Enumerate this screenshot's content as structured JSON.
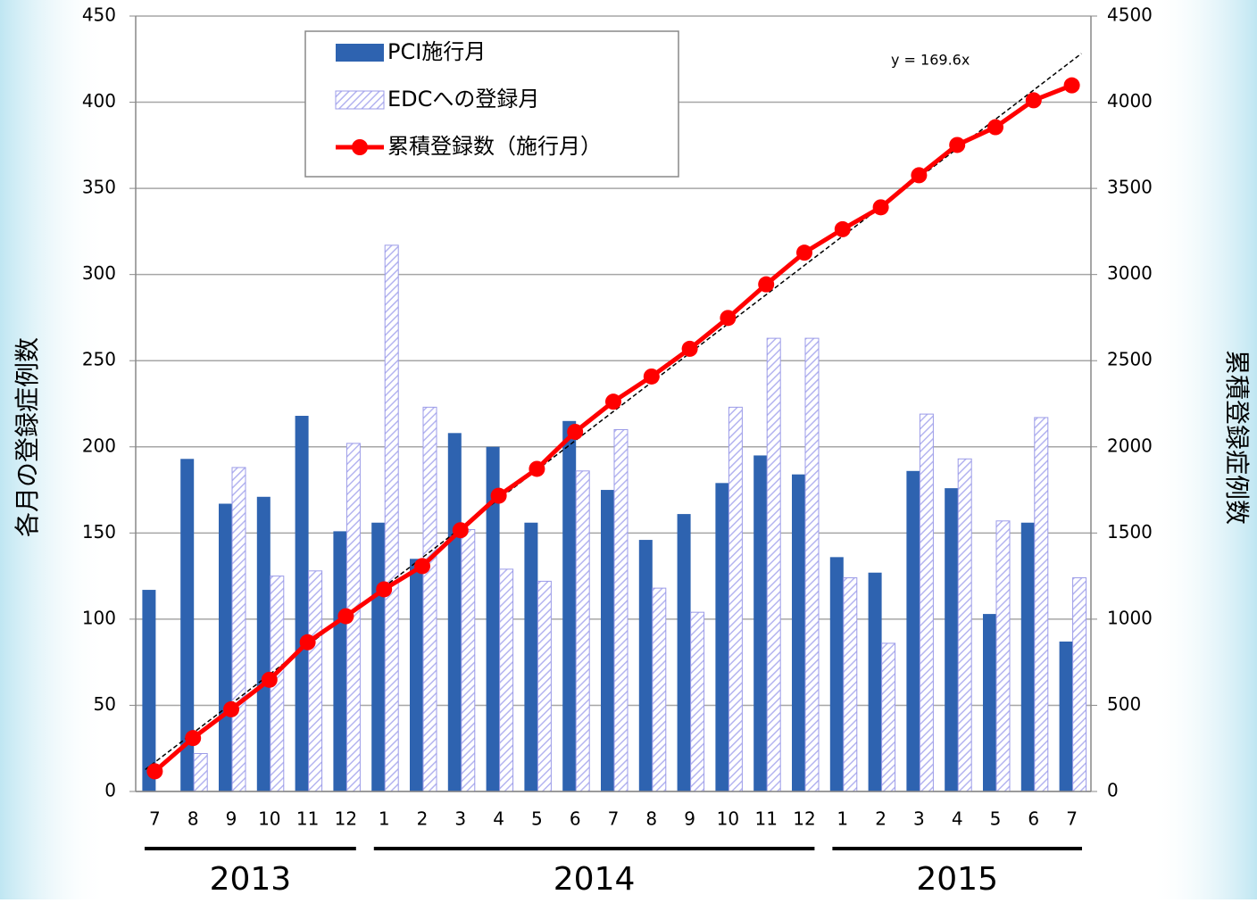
{
  "chart_data": {
    "type": "bar",
    "categories": [
      "7",
      "8",
      "9",
      "10",
      "11",
      "12",
      "1",
      "2",
      "3",
      "4",
      "5",
      "6",
      "7",
      "8",
      "9",
      "10",
      "11",
      "12",
      "1",
      "2",
      "3",
      "4",
      "5",
      "6",
      "7"
    ],
    "years": [
      {
        "label": "2013",
        "months": 6
      },
      {
        "label": "2014",
        "months": 12
      },
      {
        "label": "2015",
        "months": 7
      }
    ],
    "series": [
      {
        "name": "PCI施行月",
        "type": "bar",
        "color": "#2e63b0",
        "values": [
          117,
          193,
          167,
          171,
          218,
          151,
          156,
          135,
          208,
          200,
          156,
          215,
          175,
          146,
          161,
          179,
          195,
          184,
          136,
          127,
          186,
          176,
          103,
          156,
          87
        ]
      },
      {
        "name": "EDCへの登録月",
        "type": "bar",
        "hatch": true,
        "color": "#9b9be8",
        "values": [
          0,
          22,
          188,
          125,
          128,
          202,
          317,
          223,
          152,
          129,
          122,
          186,
          210,
          118,
          104,
          223,
          263,
          263,
          124,
          86,
          219,
          193,
          157,
          217,
          124
        ]
      },
      {
        "name": "累積登録数（施行月）",
        "type": "line",
        "axis": "y2",
        "color": "#ff0000",
        "values": [
          117,
          310,
          477,
          648,
          866,
          1017,
          1173,
          1308,
          1516,
          1716,
          1872,
          2087,
          2262,
          2408,
          2569,
          2748,
          2943,
          3127,
          3263,
          3390,
          3576,
          3752,
          3855,
          4011,
          4098
        ]
      }
    ],
    "trendline": {
      "label": "y = 169.6x",
      "slope": 169.6,
      "axis": "y2"
    },
    "ylabel": "各月の登録症例数",
    "y2label": "累積登録症例数",
    "ylim": [
      0,
      450
    ],
    "yticks": [
      0,
      50,
      100,
      150,
      200,
      250,
      300,
      350,
      400,
      450
    ],
    "y2lim": [
      0,
      4500
    ],
    "y2ticks": [
      0,
      500,
      1000,
      1500,
      2000,
      2500,
      3000,
      3500,
      4000,
      4500
    ],
    "grid": true,
    "legend": "top"
  }
}
